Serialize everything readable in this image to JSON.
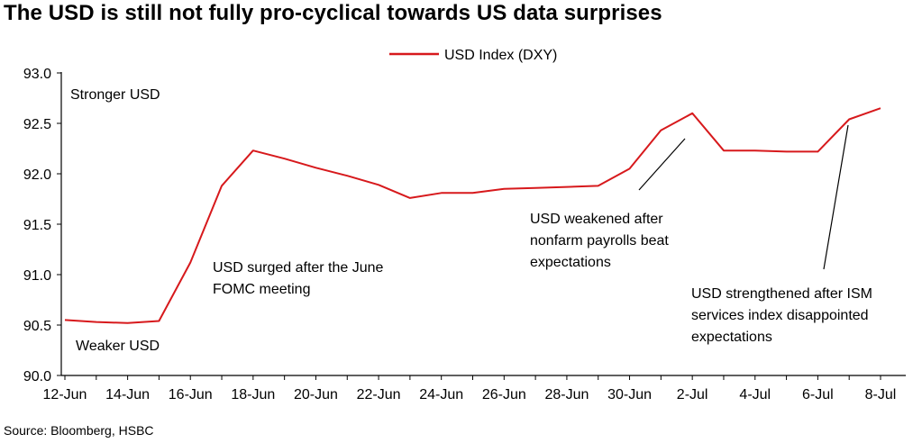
{
  "title": "The USD is still not fully pro-cyclical towards US data surprises",
  "source": "Source: Bloomberg, HSBC",
  "colors": {
    "series": "#d7191c",
    "axis": "#000000",
    "annotation_line": "#000000"
  },
  "chart_data": {
    "type": "line",
    "title": "The USD is still not fully pro-cyclical towards US data surprises",
    "xlabel": "",
    "ylabel": "",
    "ylim": [
      90.0,
      93.0
    ],
    "xlim": [
      "2017-06-12",
      "2017-07-08"
    ],
    "grid": false,
    "legend_position": "top-center",
    "y_ticks": [
      "90.0",
      "90.5",
      "91.0",
      "91.5",
      "92.0",
      "92.5",
      "93.0"
    ],
    "y_tick_values": [
      90.0,
      90.5,
      91.0,
      91.5,
      92.0,
      92.5,
      93.0
    ],
    "x_ticks": [
      "12-Jun",
      "14-Jun",
      "16-Jun",
      "18-Jun",
      "20-Jun",
      "22-Jun",
      "24-Jun",
      "26-Jun",
      "28-Jun",
      "30-Jun",
      "2-Jul",
      "4-Jul",
      "6-Jul",
      "8-Jul"
    ],
    "x_tick_dates": [
      "2017-06-12",
      "2017-06-14",
      "2017-06-16",
      "2017-06-18",
      "2017-06-20",
      "2017-06-22",
      "2017-06-24",
      "2017-06-26",
      "2017-06-28",
      "2017-06-30",
      "2017-07-02",
      "2017-07-04",
      "2017-07-06",
      "2017-07-08"
    ],
    "series": [
      {
        "name": "USD Index (DXY)",
        "x": [
          "2017-06-12",
          "2017-06-13",
          "2017-06-14",
          "2017-06-15",
          "2017-06-16",
          "2017-06-17",
          "2017-06-18",
          "2017-06-19",
          "2017-06-20",
          "2017-06-21",
          "2017-06-22",
          "2017-06-23",
          "2017-06-24",
          "2017-06-25",
          "2017-06-26",
          "2017-06-27",
          "2017-06-28",
          "2017-06-29",
          "2017-06-30",
          "2017-07-01",
          "2017-07-02",
          "2017-07-03",
          "2017-07-04",
          "2017-07-05",
          "2017-07-06",
          "2017-07-07",
          "2017-07-08"
        ],
        "values": [
          90.55,
          90.53,
          90.52,
          90.54,
          91.12,
          91.88,
          92.23,
          92.15,
          92.06,
          91.98,
          91.89,
          91.76,
          91.81,
          91.81,
          91.85,
          91.86,
          91.87,
          91.88,
          92.05,
          92.43,
          92.6,
          92.23,
          92.23,
          92.22,
          92.22,
          92.54,
          92.65
        ]
      }
    ],
    "annotations": [
      {
        "id": "stronger",
        "text": [
          "Stronger USD"
        ]
      },
      {
        "id": "weaker",
        "text": [
          "Weaker USD"
        ]
      },
      {
        "id": "surged",
        "text": [
          "USD surged after the June",
          "FOMC meeting"
        ]
      },
      {
        "id": "weakened",
        "text": [
          "USD weakened after",
          "nonfarm payrolls beat",
          "expectations"
        ]
      },
      {
        "id": "strengthened",
        "text": [
          "USD strengthened after ISM",
          "services index disappointed",
          "expectations"
        ]
      }
    ]
  }
}
